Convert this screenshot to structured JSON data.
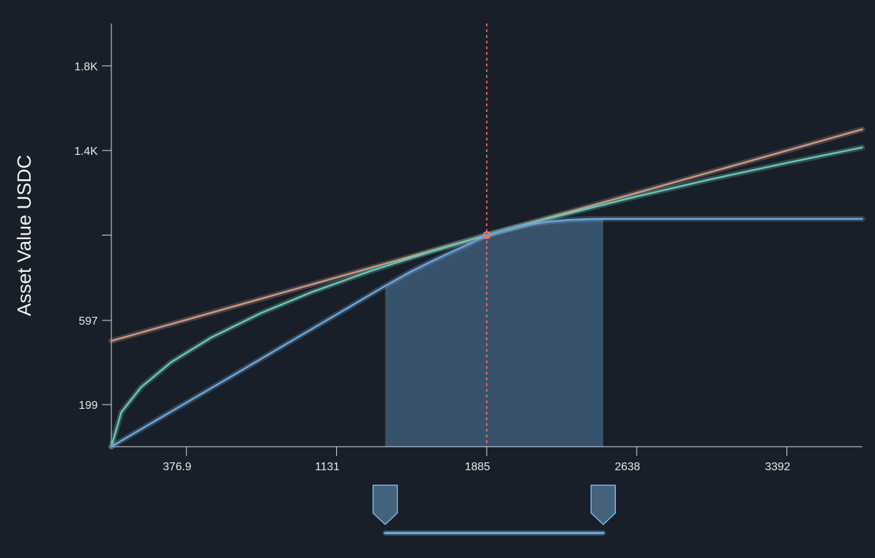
{
  "chart_data": {
    "type": "line",
    "title": "",
    "xlabel": "",
    "ylabel": "Asset Value USDC",
    "xlim": [
      0,
      3770
    ],
    "ylim": [
      0,
      2000
    ],
    "x_ticks": [
      {
        "value": 376.9,
        "label": "376.9"
      },
      {
        "value": 1131,
        "label": "1131"
      },
      {
        "value": 1885,
        "label": "1885"
      },
      {
        "value": 2638,
        "label": "2638"
      },
      {
        "value": 3392,
        "label": "3392"
      }
    ],
    "y_ticks": [
      {
        "value": 199,
        "label": "199"
      },
      {
        "value": 597,
        "label": "597"
      },
      {
        "value": 1000,
        "label": ""
      },
      {
        "value": 1400,
        "label": "1.4K"
      },
      {
        "value": 1800,
        "label": "1.8K"
      }
    ],
    "current_price": 1885,
    "current_value": 1000,
    "range": {
      "lower": 1375,
      "upper": 2470
    },
    "grid": false,
    "legend": "none",
    "series": [
      {
        "color": "#c79a86",
        "x": [
          0,
          1885,
          3770
        ],
        "y": [
          500,
          1000,
          1500
        ]
      },
      {
        "color": "#6cc5b3",
        "x": [
          0,
          50,
          150,
          300,
          500,
          750,
          1000,
          1300,
          1600,
          1885,
          2200,
          2600,
          3000,
          3400,
          3770
        ],
        "y": [
          0,
          163,
          282,
          399,
          515,
          631,
          728,
          830,
          921,
          1000,
          1080,
          1174,
          1262,
          1343,
          1414
        ]
      },
      {
        "color": "#6fa6d6",
        "x": [
          0,
          300,
          600,
          900,
          1200,
          1375,
          1500,
          1600,
          1700,
          1800,
          1885,
          2000,
          2100,
          2200,
          2300,
          2400,
          2470,
          3000,
          3770
        ],
        "y": [
          0,
          166,
          331,
          497,
          663,
          760,
          826,
          873,
          917,
          960,
          1000,
          1030,
          1050,
          1064,
          1072,
          1076,
          1077,
          1077,
          1077
        ]
      }
    ],
    "colors": {
      "background": "#181f28",
      "axis": "#d9dde3",
      "range_fill": "#3a5570",
      "current_price_line": "#ff6f6f",
      "handle_fill": "#44627c",
      "handle_stroke": "#7fb8e6"
    }
  }
}
